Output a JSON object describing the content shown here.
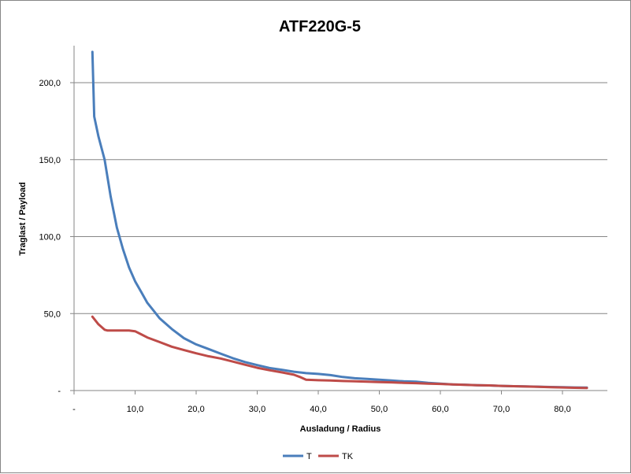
{
  "chart_data": {
    "type": "line",
    "title": "ATF220G-5",
    "xlabel": "Ausladung / Radius",
    "ylabel": "Traglast / Payload",
    "xlim": [
      0,
      88
    ],
    "ylim": [
      0,
      225
    ],
    "x_ticks": [
      "-",
      "10,0",
      "20,0",
      "30,0",
      "40,0",
      "50,0",
      "60,0",
      "70,0",
      "80,0"
    ],
    "y_ticks": [
      "-",
      "50,0",
      "100,0",
      "150,0",
      "200,0"
    ],
    "grid": "horizontal",
    "legend_position": "bottom",
    "series": [
      {
        "name": "T",
        "color": "#4a7ebb",
        "x": [
          3.0,
          3.3,
          4.0,
          5.0,
          6.0,
          7.0,
          8.0,
          9.0,
          10.0,
          11.0,
          12.0,
          13.0,
          14.0,
          16.0,
          18.0,
          20.0,
          22.0,
          24.0,
          26.0,
          28.0,
          30.0,
          32.0,
          34.0,
          36.0,
          38.0,
          40.0,
          42.0,
          44.0,
          46.0,
          48.0,
          50.0,
          52.0,
          54.0,
          56.0,
          58.0,
          60.0,
          62.0,
          64.0,
          66.0,
          68.0,
          70.0,
          72.0,
          74.0,
          76.0,
          78.0,
          80.0,
          82.0,
          84.0
        ],
        "y": [
          220,
          178,
          165,
          150,
          126,
          106,
          92,
          80,
          71,
          64,
          57,
          52,
          47,
          40,
          34,
          30,
          27,
          24,
          21,
          18.5,
          16.5,
          14.7,
          13.5,
          12.2,
          11.3,
          10.8,
          10.0,
          8.8,
          8.0,
          7.5,
          7.0,
          6.5,
          6.0,
          5.8,
          5.0,
          4.5,
          4.0,
          3.8,
          3.5,
          3.3,
          3.0,
          2.8,
          2.7,
          2.5,
          2.3,
          2.2,
          2.0,
          1.9
        ]
      },
      {
        "name": "TK",
        "color": "#be4b48",
        "x": [
          3.0,
          4.0,
          5.0,
          5.5,
          6.0,
          7.0,
          8.0,
          9.0,
          10.0,
          11.0,
          12.0,
          14.0,
          16.0,
          18.0,
          20.0,
          22.0,
          24.0,
          26.0,
          28.0,
          30.0,
          32.0,
          34.0,
          36.0,
          37.0,
          38.0,
          40.0,
          42.0,
          44.0,
          46.0,
          48.0,
          50.0,
          52.0,
          54.0,
          56.0,
          58.0,
          60.0,
          62.0,
          64.0,
          66.0,
          68.0,
          70.0,
          72.0,
          74.0,
          76.0,
          78.0,
          80.0,
          82.0,
          84.0
        ],
        "y": [
          48,
          43,
          39.5,
          39,
          39,
          39,
          39,
          39,
          38.5,
          36.5,
          34.5,
          31.5,
          28.5,
          26.3,
          24.2,
          22.3,
          20.8,
          18.8,
          16.8,
          14.8,
          13.2,
          11.8,
          10.3,
          8.8,
          7.0,
          6.7,
          6.5,
          6.2,
          6.0,
          5.8,
          5.5,
          5.3,
          5.0,
          4.8,
          4.5,
          4.3,
          4.0,
          3.7,
          3.5,
          3.3,
          3.0,
          2.8,
          2.6,
          2.4,
          2.2,
          2.0,
          1.8,
          1.7
        ]
      }
    ]
  }
}
